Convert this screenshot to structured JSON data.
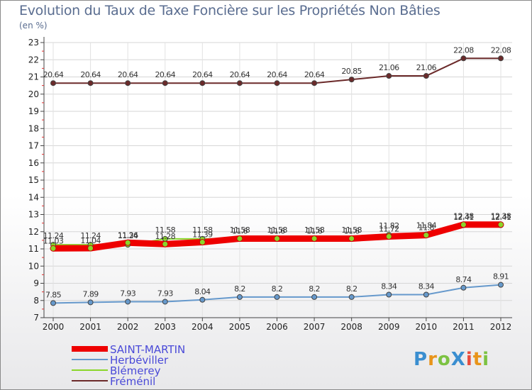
{
  "chart_data": {
    "type": "line",
    "title": "Evolution du Taux de Taxe Foncière sur les Propriétés Non Bâties",
    "ylabel": "(en %)",
    "xlabel": "",
    "ylim": [
      7,
      23
    ],
    "yticks": [
      7,
      8,
      9,
      10,
      11,
      12,
      13,
      14,
      15,
      16,
      17,
      18,
      19,
      20,
      21,
      22,
      23
    ],
    "categories": [
      "2000",
      "2001",
      "2002",
      "2003",
      "2004",
      "2005",
      "2006",
      "2007",
      "2008",
      "2009",
      "2010",
      "2011",
      "2012"
    ],
    "series": [
      {
        "name": "Fréménil",
        "color": "#6b2a2a",
        "values": [
          20.64,
          20.64,
          20.64,
          20.64,
          20.64,
          20.64,
          20.64,
          20.64,
          20.85,
          21.06,
          21.06,
          22.08,
          22.08
        ],
        "labels": [
          "20.64",
          "20.64",
          "20.64",
          "20.64",
          "20.64",
          "20.64",
          "20.64",
          "20.64",
          "20.85",
          "21.06",
          "21.06",
          "22.08",
          "22.08"
        ]
      },
      {
        "name": "Blémerey",
        "color": "#8ad62a",
        "values": [
          11.24,
          11.24,
          11.24,
          11.58,
          11.58,
          11.58,
          11.58,
          11.58,
          11.58,
          11.82,
          11.84,
          12.38,
          12.38
        ],
        "labels": [
          "11.24",
          "11.24",
          "11.24",
          "11.58",
          "11.58",
          "11.58",
          "11.58",
          "11.58",
          "11.58",
          "11.82",
          "11.84",
          "12.38",
          "12.38"
        ]
      },
      {
        "name": "SAINT-MARTIN",
        "color": "#ee0000",
        "values": [
          11.03,
          11.04,
          11.36,
          11.28,
          11.39,
          11.6,
          11.6,
          11.6,
          11.6,
          11.72,
          11.8,
          12.41,
          12.41
        ],
        "labels": [
          "11.03",
          "11.04",
          "11.36",
          "11.28",
          "11.39",
          "11.6",
          "11.6",
          "11.6",
          "11.6",
          "11.72",
          "11.8",
          "12.41",
          "12.41"
        ]
      },
      {
        "name": "Herbéviller",
        "color": "#6699cc",
        "values": [
          7.85,
          7.89,
          7.93,
          7.93,
          8.04,
          8.2,
          8.2,
          8.2,
          8.2,
          8.34,
          8.34,
          8.74,
          8.91
        ],
        "labels": [
          "7.85",
          "7.89",
          "7.93",
          "7.93",
          "8.04",
          "8.2",
          "8.2",
          "8.2",
          "8.2",
          "8.34",
          "8.34",
          "8.74",
          "8.91"
        ]
      }
    ],
    "legend": [
      "SAINT-MARTIN",
      "Herbéviller",
      "Blémerey",
      "Fréménil"
    ],
    "legend_placement": "bottom-left"
  },
  "logo": {
    "text": "ProXiti"
  }
}
